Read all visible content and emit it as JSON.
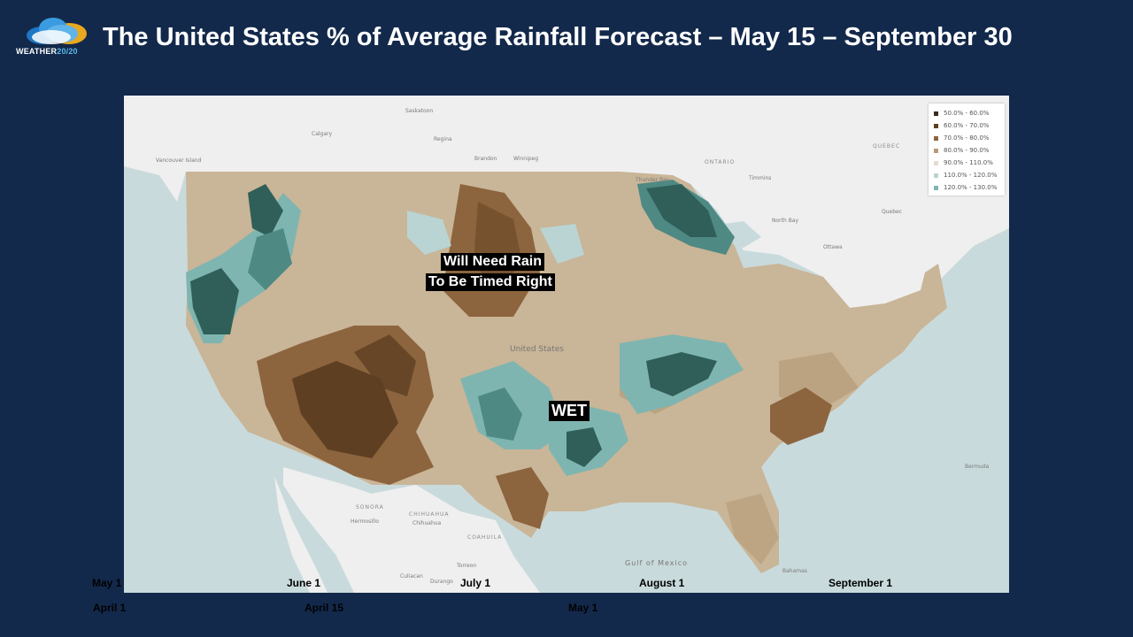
{
  "header": {
    "logo_text_main": "WEATHER",
    "logo_text_accent": "20/20",
    "title": "The United States % of Average Rainfall Forecast – May 15 – September 30"
  },
  "legend": [
    {
      "label": "50.0% - 60.0%",
      "color": "#3d2a1a"
    },
    {
      "label": "60.0% - 70.0%",
      "color": "#5e3f22"
    },
    {
      "label": "70.0% - 80.0%",
      "color": "#8c643e"
    },
    {
      "label": "80.0% - 90.0%",
      "color": "#b59b78"
    },
    {
      "label": "90.0% - 110.0%",
      "color": "#e4dccd"
    },
    {
      "label": "110.0% - 120.0%",
      "color": "#b9d4d3"
    },
    {
      "label": "120.0% - 130.0%",
      "color": "#7fb5b1"
    }
  ],
  "annotations": {
    "need_rain_line1": "Will Need Rain",
    "need_rain_line2": "To Be Timed Right",
    "wet": "WET"
  },
  "base_map": {
    "country_label": "United States",
    "region_labels": [
      "ONTARIO",
      "QUEBEC",
      "SONORA",
      "CHIHUAHUA",
      "COAHUILA",
      "Gulf of Mexico"
    ],
    "cities": [
      "Saskatoon",
      "Calgary",
      "Regina",
      "Brandon",
      "Winnipeg",
      "Thunder Bay",
      "Timmins",
      "North Bay",
      "Ottawa",
      "Quebec",
      "Vancouver Island",
      "Hermosillo",
      "Chihuahua",
      "Torreon",
      "Culiacan",
      "Durango",
      "Bermuda",
      "Bahamas"
    ]
  },
  "timeline": {
    "row1": [
      "May 1",
      "June 1",
      "July 1",
      "August 1",
      "September 1"
    ],
    "row2": [
      "April 1",
      "April 15",
      "May 1"
    ]
  },
  "colors": {
    "background": "#13294b",
    "very_dry": "#5e3f22",
    "dry": "#8c643e",
    "near_normal": "#c9b597",
    "wet": "#7fb5b1",
    "very_wet": "#2f5f58"
  }
}
